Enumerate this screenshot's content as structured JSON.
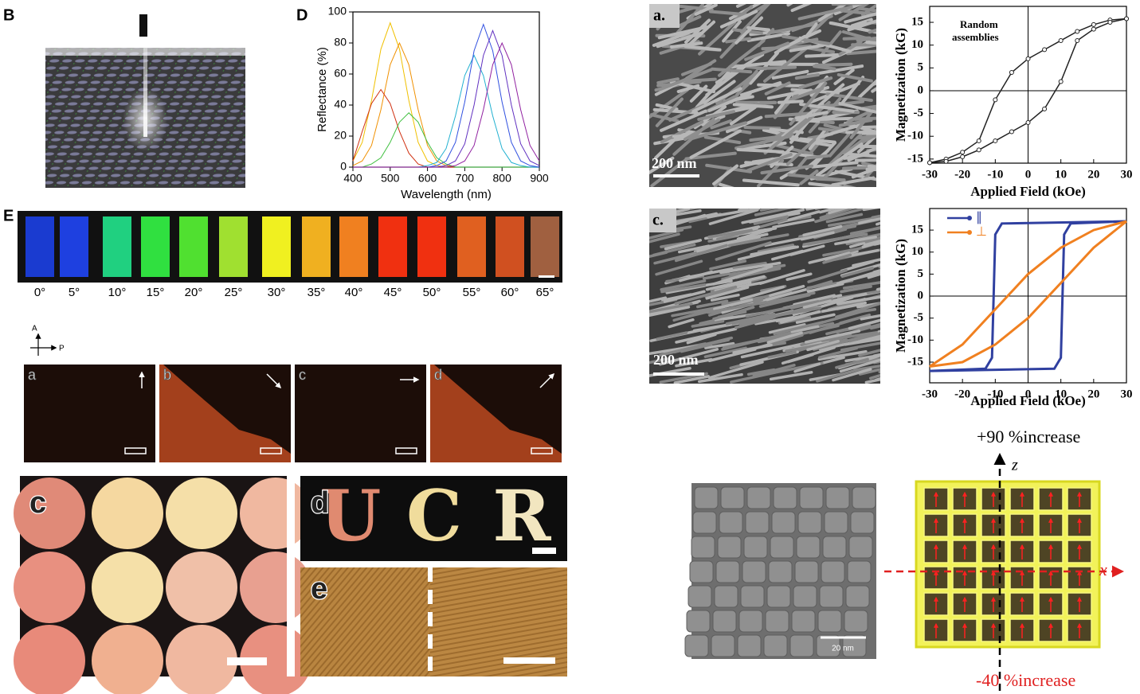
{
  "labels": {
    "B": "B",
    "D": "D",
    "E": "E"
  },
  "angle_strip": {
    "angles": [
      "0°",
      "5°",
      "10°",
      "15°",
      "20°",
      "25°",
      "30°",
      "35°",
      "40°",
      "45°",
      "50°",
      "55°",
      "60°",
      "65°"
    ]
  },
  "polarizer": {
    "analyzer": "A",
    "polarizer": "P"
  },
  "micrographs": [
    "a",
    "b",
    "c",
    "d"
  ],
  "samples": {
    "c": "c",
    "d": "d",
    "e": "e",
    "letters": [
      "U",
      "C",
      "R"
    ]
  },
  "sem": [
    {
      "label": "a.",
      "scale": "200 nm"
    },
    {
      "label": "c.",
      "scale": "200 nm"
    },
    {
      "scale": "20 nm"
    }
  ],
  "cube": {
    "top": "+90 %increase",
    "bottom": "-40 %increase",
    "z": "z",
    "x": "x"
  },
  "chart_data": [
    {
      "type": "line",
      "xlabel": "Wavelength (nm)",
      "ylabel": "Reflectance (%)",
      "xlim": [
        400,
        900
      ],
      "ylim": [
        0,
        100
      ],
      "xticks": [
        400,
        500,
        600,
        700,
        800,
        900
      ],
      "yticks": [
        0,
        20,
        40,
        60,
        80,
        100
      ],
      "x": [
        400,
        425,
        450,
        475,
        500,
        525,
        550,
        575,
        600,
        625,
        650,
        675,
        700,
        725,
        750,
        775,
        800,
        825,
        850,
        875,
        900
      ],
      "series": [
        {
          "color": "#f0c000",
          "values": [
            4,
            16,
            43,
            76,
            93,
            76,
            43,
            16,
            4,
            1,
            0,
            0,
            0,
            0,
            0,
            0,
            0,
            0,
            0,
            0,
            0
          ]
        },
        {
          "color": "#f09000",
          "values": [
            1,
            4,
            14,
            37,
            66,
            80,
            66,
            37,
            14,
            4,
            1,
            0,
            0,
            0,
            0,
            0,
            0,
            0,
            0,
            0,
            0
          ]
        },
        {
          "color": "#d03010",
          "values": [
            4,
            23,
            41,
            50,
            41,
            23,
            9,
            2,
            0,
            0,
            0,
            0,
            0,
            0,
            0,
            0,
            0,
            0,
            0,
            0,
            0
          ]
        },
        {
          "color": "#40c040",
          "values": [
            0,
            0,
            2,
            6,
            16,
            29,
            35,
            29,
            16,
            6,
            2,
            0,
            0,
            0,
            0,
            0,
            0,
            0,
            0,
            0,
            0
          ]
        },
        {
          "color": "#20b0d0",
          "values": [
            0,
            0,
            0,
            0,
            0,
            0,
            0,
            0,
            1,
            3,
            12,
            33,
            59,
            72,
            59,
            33,
            12,
            3,
            1,
            0,
            0
          ]
        },
        {
          "color": "#3050e0",
          "values": [
            0,
            0,
            0,
            0,
            0,
            0,
            0,
            0,
            0,
            1,
            4,
            16,
            42,
            75,
            92,
            75,
            42,
            16,
            4,
            1,
            0
          ]
        },
        {
          "color": "#6030c0",
          "values": [
            0,
            0,
            0,
            0,
            0,
            0,
            0,
            0,
            0,
            0,
            1,
            4,
            15,
            40,
            72,
            88,
            72,
            40,
            15,
            4,
            1
          ]
        },
        {
          "color": "#9020a0",
          "values": [
            0,
            0,
            0,
            0,
            0,
            0,
            0,
            0,
            0,
            0,
            0,
            1,
            4,
            14,
            37,
            66,
            80,
            66,
            37,
            14,
            4
          ]
        }
      ]
    },
    {
      "type": "line",
      "xlabel": "Applied Field (kOe)",
      "ylabel": "Magnetization (kG)",
      "annotation": [
        "Random",
        "assemblies"
      ],
      "xlim": [
        -30,
        30
      ],
      "ylim": [
        -15.9,
        18.5
      ],
      "xticks": [
        -30,
        -20,
        -10,
        0,
        10,
        20,
        30
      ],
      "yticks": [
        -15,
        -10,
        -5,
        0,
        5,
        10,
        15
      ],
      "zero_axes": true,
      "markers": true,
      "series": [
        {
          "color": "#222222",
          "x": [
            30,
            25,
            20,
            15,
            10,
            5,
            0,
            -5,
            -10,
            -15,
            -20,
            -25,
            -30
          ],
          "values": [
            15.8,
            15.5,
            14.5,
            13,
            11,
            9,
            7,
            4,
            -2,
            -11,
            -13.5,
            -15,
            -15.8
          ]
        },
        {
          "color": "#222222",
          "x": [
            -30,
            -25,
            -20,
            -15,
            -10,
            -5,
            0,
            5,
            10,
            15,
            20,
            25,
            30
          ],
          "values": [
            -15.8,
            -15.5,
            -14.5,
            -13,
            -11,
            -9,
            -7,
            -4,
            2,
            11,
            13.5,
            15,
            15.8
          ]
        }
      ]
    },
    {
      "type": "line",
      "xlabel": "Applied Field (kOe)",
      "ylabel": "Magnetization (kG)",
      "legend": "upper left",
      "xlim": [
        -30,
        30
      ],
      "ylim": [
        -19.7,
        19.9
      ],
      "xticks": [
        -30,
        -20,
        -10,
        0,
        10,
        20,
        30
      ],
      "yticks": [
        -15,
        -10,
        -5,
        0,
        5,
        10,
        15
      ],
      "zero_axes": true,
      "series": [
        {
          "name": "∥",
          "color": "#3040a0",
          "x": [
            30,
            -8,
            -10,
            -11,
            -13,
            -30,
            8,
            10,
            11,
            13,
            30
          ],
          "values": [
            17,
            16.5,
            14,
            -14,
            -16.5,
            -17,
            -16.5,
            -14,
            14,
            16.5,
            17
          ]
        },
        {
          "name": "⊥",
          "color": "#f08020",
          "x": [
            30,
            20,
            10,
            0,
            -10,
            -20,
            -30,
            -20,
            -10,
            0,
            10,
            20,
            30
          ],
          "values": [
            17,
            15,
            11,
            5,
            -3,
            -11,
            -16,
            -15,
            -11,
            -5,
            3,
            11,
            17
          ]
        }
      ]
    }
  ]
}
